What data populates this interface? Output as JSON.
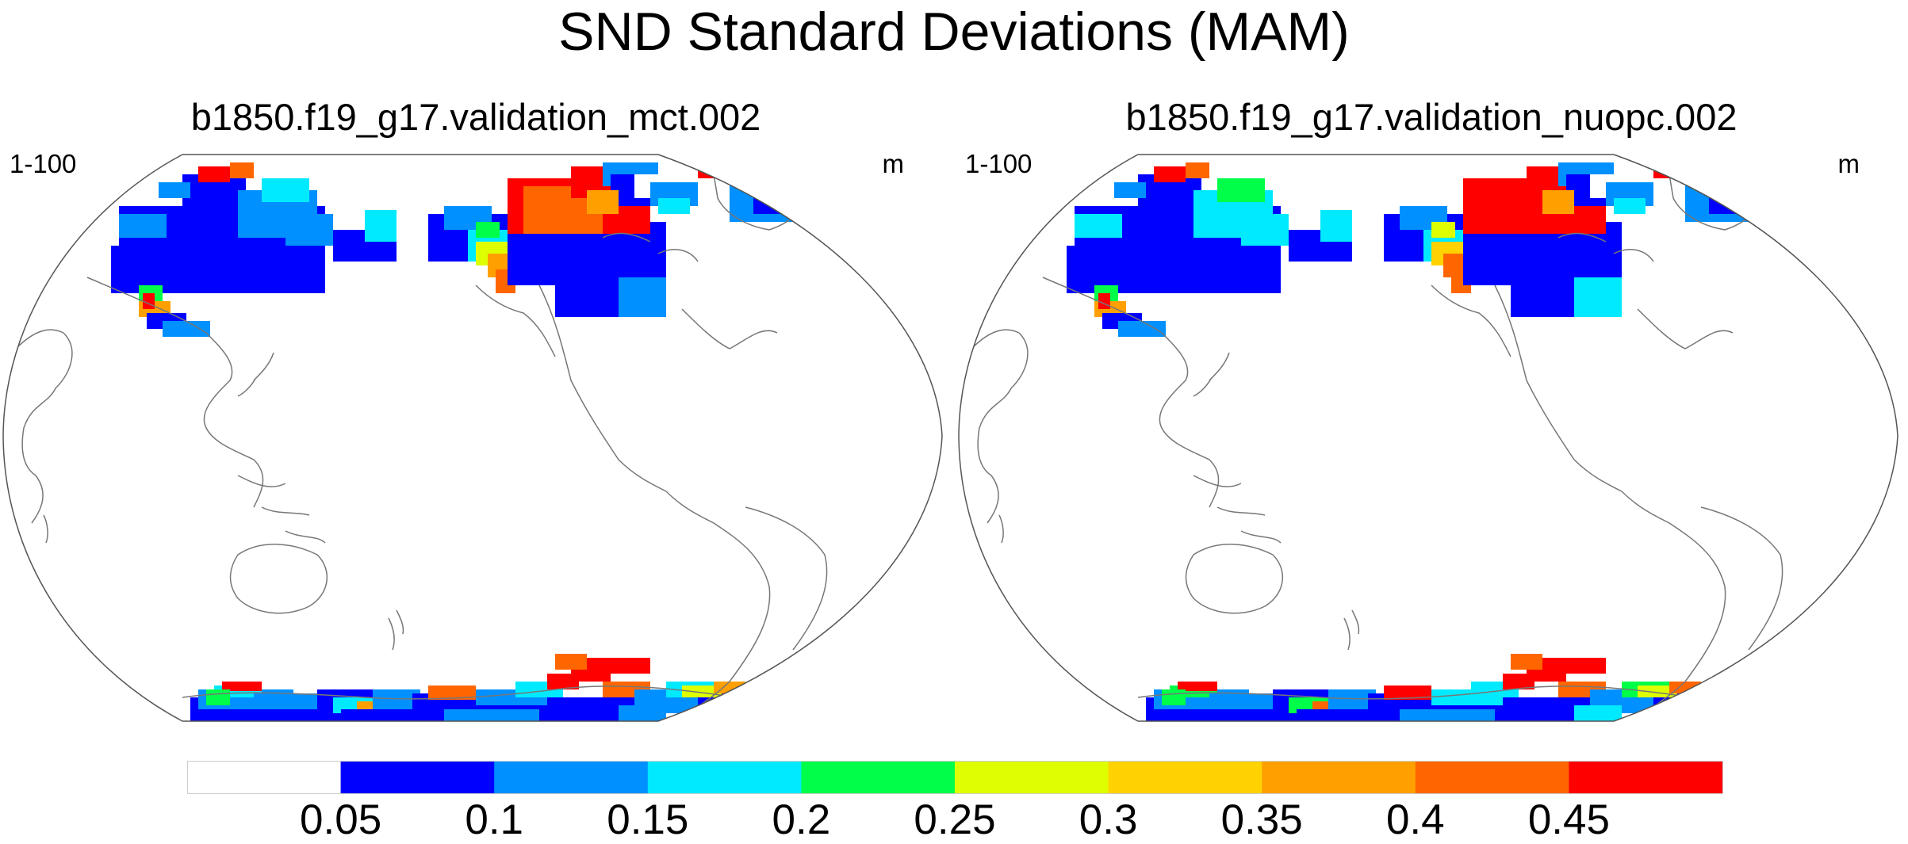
{
  "title": "SND Standard Deviations (MAM)",
  "panels": [
    {
      "title": "b1850.f19_g17.validation_mct.002",
      "left_label": "1-100",
      "unit": "m"
    },
    {
      "title": "b1850.f19_g17.validation_nuopc.002",
      "left_label": "1-100",
      "unit": "m"
    }
  ],
  "colorbar": {
    "colors": [
      "#ffffff",
      "#0000ff",
      "#0090ff",
      "#00eaff",
      "#00ff48",
      "#deff00",
      "#ffd200",
      "#ffa000",
      "#ff6600",
      "#ff0000"
    ],
    "labels": [
      "0.05",
      "0.1",
      "0.15",
      "0.2",
      "0.25",
      "0.3",
      "0.35",
      "0.4",
      "0.45"
    ]
  },
  "colors": {
    "land_outline": "#777777",
    "frame": "#555555"
  }
}
